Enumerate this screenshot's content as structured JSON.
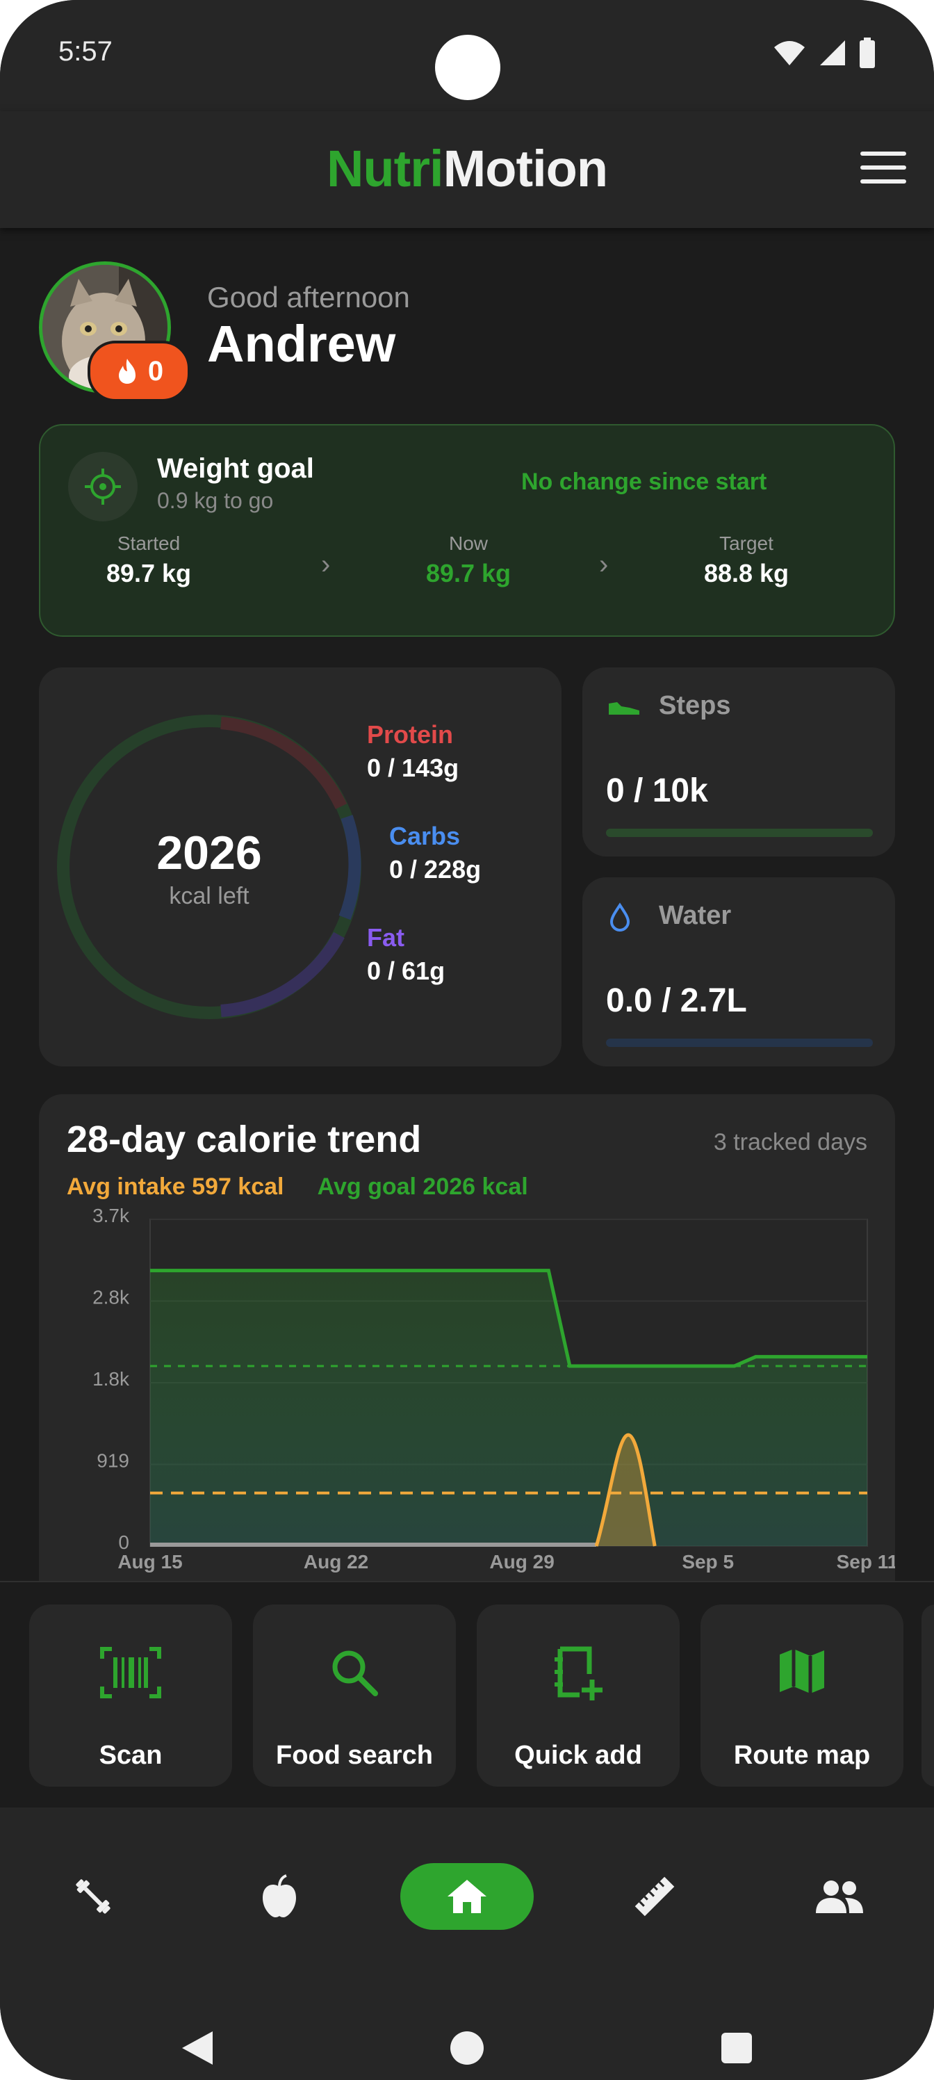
{
  "status_bar": {
    "time": "5:57"
  },
  "app": {
    "brand_part1": "Nutri",
    "brand_part2": "Motion"
  },
  "greeting": {
    "subtitle": "Good afternoon",
    "name": "Andrew",
    "streak_count": "0"
  },
  "weight_goal": {
    "title": "Weight goal",
    "subtitle": "0.9 kg to go",
    "status": "No change since start",
    "started_label": "Started",
    "started_value": "89.7 kg",
    "now_label": "Now",
    "now_value": "89.7 kg",
    "target_label": "Target",
    "target_value": "88.8 kg"
  },
  "calories": {
    "remaining": "2026",
    "remaining_label": "kcal left",
    "macros": [
      {
        "name": "Protein",
        "value": "0 / 143g",
        "color": "#e24a4a"
      },
      {
        "name": "Carbs",
        "value": "0 / 228g",
        "color": "#4a8ef0"
      },
      {
        "name": "Fat",
        "value": "0 / 61g",
        "color": "#8a5cf0"
      }
    ]
  },
  "steps": {
    "title": "Steps",
    "value": "0 / 10k",
    "progress": 0
  },
  "water": {
    "title": "Water",
    "value": "0.0 / 2.7L",
    "progress": 0
  },
  "trend": {
    "title": "28-day calorie trend",
    "tracked": "3 tracked days",
    "avg_intake": "Avg intake 597 kcal",
    "avg_goal": "Avg goal 2026 kcal"
  },
  "chart_data": {
    "type": "line",
    "ytick_labels": [
      "0",
      "919",
      "1.8k",
      "2.8k",
      "3.7k"
    ],
    "ytick_values": [
      0,
      919,
      1838,
      2757,
      3676
    ],
    "xtick_labels": [
      "Aug 15",
      "Aug 22",
      "Aug 29",
      "Sep 5",
      "Sep 11"
    ],
    "xtick_days": [
      0,
      7,
      14,
      21,
      27
    ],
    "ylim": [
      0,
      3676
    ],
    "xlim_days": [
      0,
      27
    ],
    "series": [
      {
        "role": "goal",
        "color": "#2ea52e",
        "points": [
          [
            0,
            3100
          ],
          [
            15,
            3100
          ],
          [
            15.8,
            2026
          ],
          [
            22,
            2026
          ],
          [
            22.8,
            2130
          ],
          [
            27,
            2130
          ]
        ]
      },
      {
        "role": "intake",
        "color": "#f2a93b",
        "points": [
          [
            16.8,
            0
          ],
          [
            17.4,
            600
          ],
          [
            18,
            1250
          ],
          [
            18.6,
            600
          ],
          [
            19,
            0
          ]
        ]
      }
    ],
    "reference_lines": [
      {
        "role": "avg goal",
        "value": 2026,
        "color": "#2ea52e"
      },
      {
        "role": "avg intake",
        "value": 597,
        "color": "#f2a93b"
      }
    ],
    "grid": true
  },
  "quick_actions": [
    {
      "label": "Scan",
      "icon": "barcode-scan-icon"
    },
    {
      "label": "Food search",
      "icon": "search-icon"
    },
    {
      "label": "Quick add",
      "icon": "note-add-icon"
    },
    {
      "label": "Route map",
      "icon": "map-icon"
    }
  ],
  "bottom_nav": [
    {
      "icon": "dumbbell-icon"
    },
    {
      "icon": "apple-icon"
    },
    {
      "icon": "home-icon",
      "active": true
    },
    {
      "icon": "ruler-icon"
    },
    {
      "icon": "people-icon"
    }
  ]
}
